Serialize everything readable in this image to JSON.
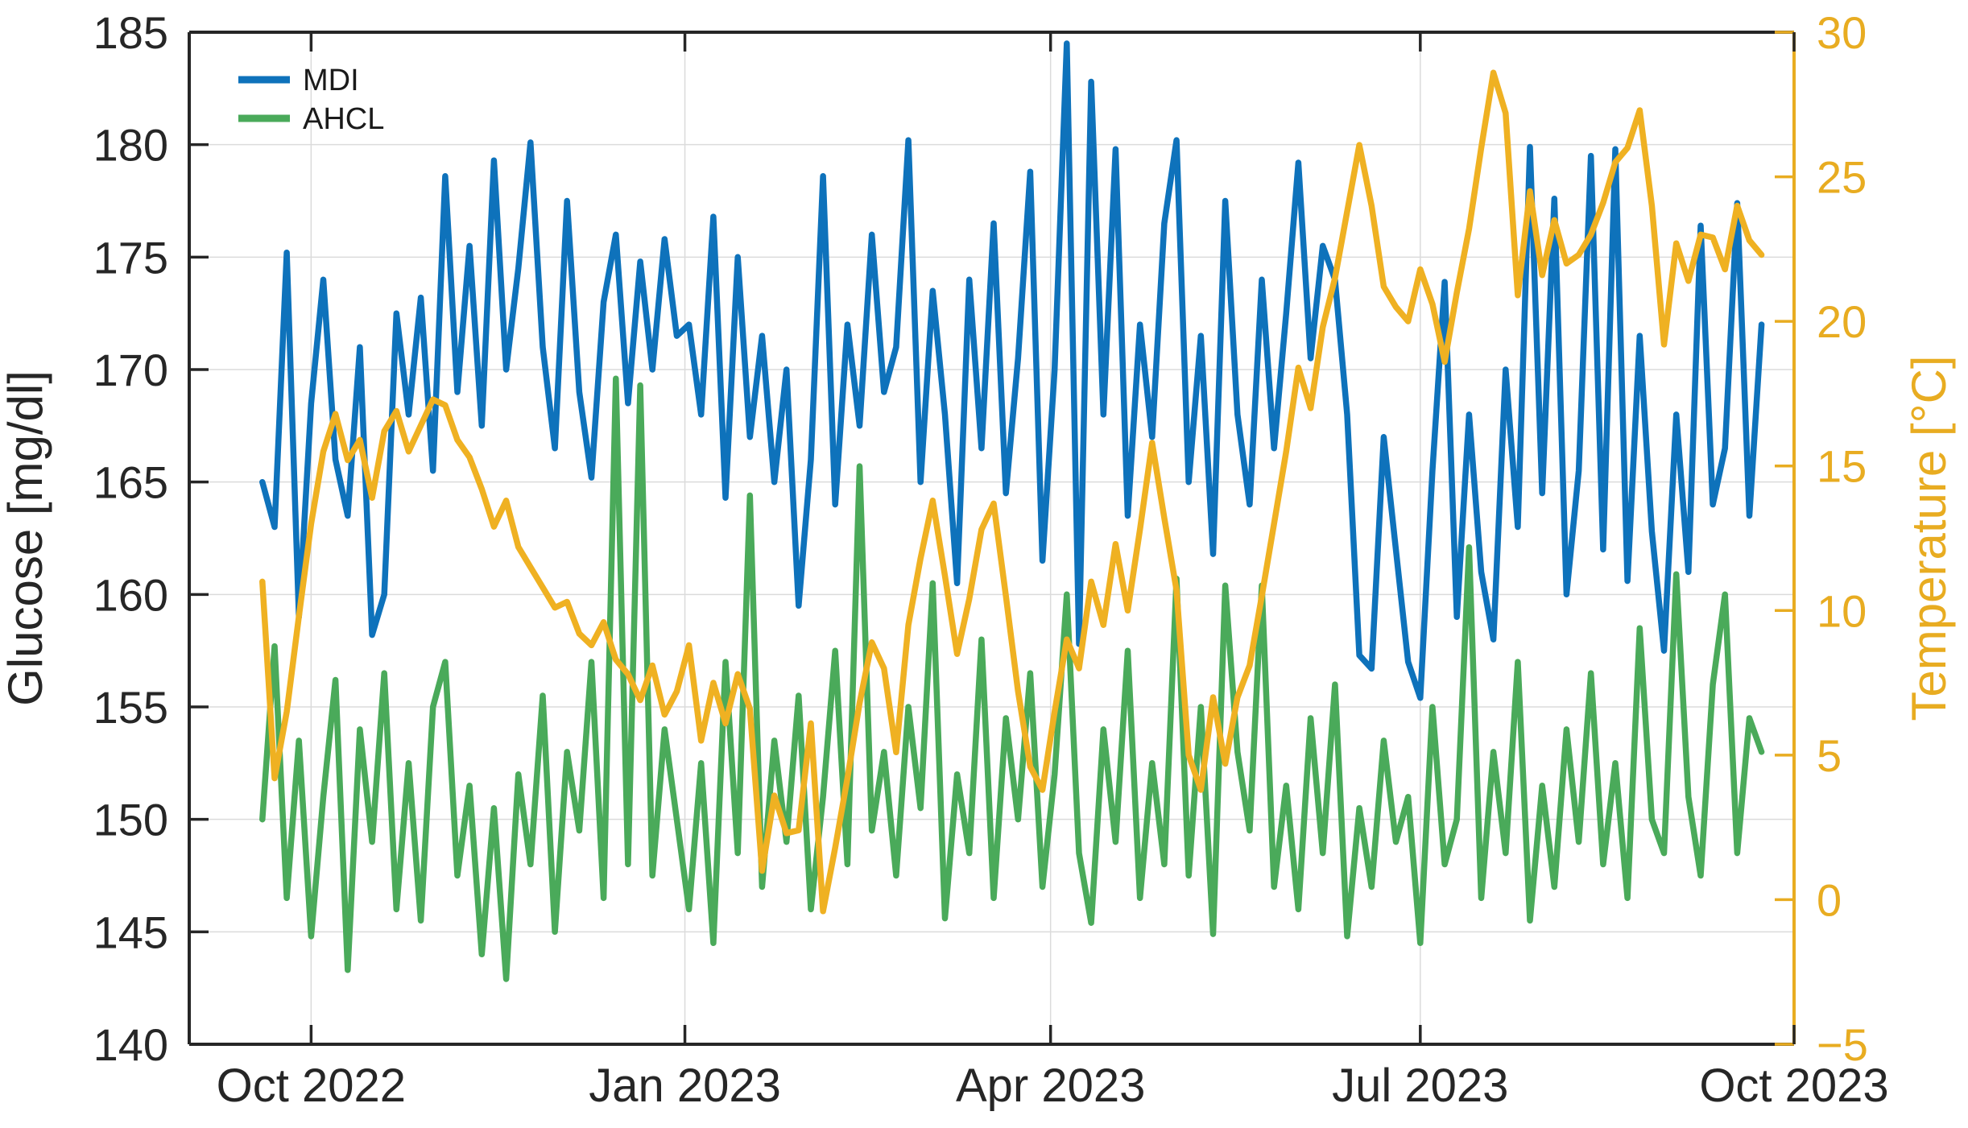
{
  "chart_data": {
    "type": "line",
    "title": "",
    "x_axis": {
      "unit": "days since 2022-09-01",
      "domain": [
        0,
        395
      ],
      "ticks": [
        {
          "day": 30,
          "label": "Oct 2022"
        },
        {
          "day": 122,
          "label": "Jan 2023"
        },
        {
          "day": 212,
          "label": "Apr 2023"
        },
        {
          "day": 303,
          "label": "Jul 2023"
        },
        {
          "day": 395,
          "label": "Oct 2023"
        }
      ]
    },
    "left_axis": {
      "label": "Glucose [mg/dl]",
      "min": 140,
      "max": 185,
      "tick_step": 5,
      "color": "#262626"
    },
    "right_axis": {
      "label": "Temperature [°C]",
      "min": -5,
      "max": 30,
      "tick_step": 5,
      "color": "#E8AC21"
    },
    "grid": true,
    "grid_color": "#DBDBDB",
    "axis_color": "#262626",
    "legend": {
      "position": "top-left",
      "entries": [
        "MDI",
        "AHCL"
      ]
    },
    "sampling": {
      "start_day": 18,
      "step_days": 3
    },
    "series": [
      {
        "name": "MDI",
        "axis": "left",
        "color": "#0E72BB",
        "values": [
          165,
          163,
          175.2,
          159,
          168.5,
          174,
          166,
          163.5,
          171,
          158.2,
          160,
          172.5,
          168,
          173.2,
          165.5,
          178.6,
          169,
          175.5,
          167.5,
          179.3,
          170,
          174.5,
          180.1,
          171,
          166.5,
          177.5,
          169,
          165.2,
          173,
          176,
          168.5,
          174.8,
          170,
          175.8,
          171.5,
          172,
          168,
          176.8,
          164.3,
          175,
          167,
          171.5,
          165,
          170,
          159.5,
          166,
          178.6,
          164,
          172,
          167.5,
          176,
          169,
          171,
          180.2,
          165,
          173.5,
          168,
          160.5,
          174,
          166.5,
          176.5,
          164.5,
          170.5,
          178.8,
          161.5,
          170,
          184.5,
          157.8,
          182.8,
          168,
          179.8,
          163.5,
          172,
          167,
          176.5,
          180.2,
          165,
          171.5,
          161.8,
          177.5,
          168,
          164,
          174,
          166.5,
          172.5,
          179.2,
          170.5,
          175.5,
          174,
          168,
          157.3,
          156.7,
          167,
          162,
          157,
          155.4,
          165.5,
          173.9,
          159,
          168,
          161,
          158,
          170,
          163,
          179.9,
          164.5,
          177.6,
          160,
          165.5,
          179.5,
          162,
          179.8,
          160.6,
          171.5,
          162.8,
          157.5,
          168,
          161,
          176.4,
          164,
          166.5,
          177.4,
          163.5,
          172
        ]
      },
      {
        "name": "AHCL",
        "axis": "left",
        "color": "#4AAA5A",
        "values": [
          150,
          157.7,
          146.5,
          153.5,
          144.8,
          151,
          156.2,
          143.3,
          154,
          149,
          156.5,
          146,
          152.5,
          145.5,
          155,
          157,
          147.5,
          151.5,
          144,
          150.5,
          142.9,
          152,
          148,
          155.5,
          145,
          153,
          149.5,
          157,
          146.5,
          169.6,
          148,
          169.3,
          147.5,
          154,
          150,
          146,
          152.5,
          144.5,
          157,
          148.5,
          164.4,
          147,
          153.5,
          149,
          155.5,
          146,
          151,
          157.5,
          148,
          165.7,
          149.5,
          153,
          147.5,
          155,
          150.5,
          160.5,
          145.6,
          152,
          148.5,
          158,
          146.5,
          154.5,
          150,
          156.5,
          147,
          152,
          160,
          148.5,
          145.4,
          154,
          149,
          157.5,
          146.5,
          152.5,
          148,
          160.7,
          147.5,
          155,
          144.9,
          160.4,
          153,
          149.5,
          160.4,
          147,
          151.5,
          146,
          154.5,
          148.5,
          156,
          144.8,
          150.5,
          147,
          153.5,
          149,
          151,
          144.5,
          155,
          148,
          150,
          162.1,
          146.5,
          153,
          148.5,
          157,
          145.5,
          151.5,
          147,
          154,
          149,
          156.5,
          148,
          152.5,
          146.5,
          158.5,
          150,
          148.5,
          160.9,
          151,
          147.5,
          156,
          160,
          148.5,
          154.5,
          153
        ]
      },
      {
        "name": "Temperature",
        "axis": "right",
        "color": "#EFB122",
        "values": [
          11,
          4.2,
          6.5,
          9.8,
          13,
          15.5,
          16.8,
          15.2,
          15.9,
          13.9,
          16.2,
          16.9,
          15.5,
          16.4,
          17.3,
          17.1,
          15.9,
          15.3,
          14.2,
          12.9,
          13.8,
          12.2,
          11.5,
          10.8,
          10.1,
          10.3,
          9.2,
          8.8,
          9.6,
          8.3,
          7.8,
          6.9,
          8.1,
          6.4,
          7.2,
          8.8,
          5.5,
          7.5,
          6.1,
          7.8,
          6.6,
          1,
          3.6,
          2.3,
          2.4,
          6.1,
          -0.4,
          1.8,
          4.2,
          6.8,
          8.9,
          8,
          5.1,
          9.5,
          11.8,
          13.8,
          11.2,
          8.5,
          10.4,
          12.8,
          13.7,
          10.5,
          7.2,
          4.6,
          3.8,
          6.5,
          9,
          8,
          11,
          9.5,
          12.3,
          10,
          12.8,
          15.8,
          13.2,
          10.7,
          5,
          3.8,
          7,
          4.7,
          7,
          8.1,
          10.5,
          13,
          15.5,
          18.4,
          17,
          19.8,
          21.5,
          23.8,
          26.1,
          24,
          21.2,
          20.5,
          20,
          21.8,
          20.6,
          18.6,
          21,
          23.2,
          26,
          28.6,
          27.2,
          20.9,
          24.5,
          21.6,
          23.5,
          22,
          22.3,
          23,
          24.1,
          25.5,
          26,
          27.3,
          24,
          19.2,
          22.7,
          21.4,
          23,
          22.9,
          21.8,
          24,
          22.8,
          22.3
        ]
      }
    ]
  }
}
